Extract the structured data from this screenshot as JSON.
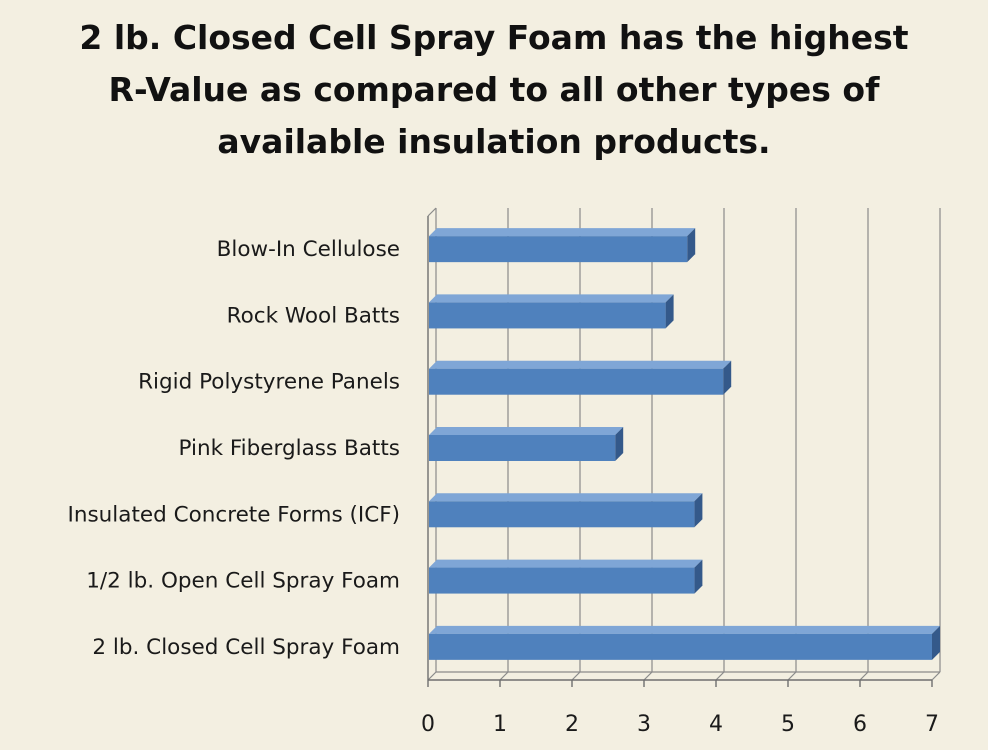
{
  "chart_data": {
    "type": "bar",
    "orientation": "horizontal",
    "title_lines": [
      "2 lb. Closed Cell Spray Foam has the highest",
      "R-Value as compared to all other types of",
      "available insulation products."
    ],
    "categories": [
      "Blow-In Cellulose",
      "Rock Wool Batts",
      "Rigid Polystyrene Panels",
      "Pink Fiberglass Batts",
      "Insulated Concrete Forms (ICF)",
      "1/2 lb. Open Cell Spray Foam",
      "2 lb. Closed Cell Spray Foam"
    ],
    "values": [
      3.6,
      3.3,
      4.1,
      2.6,
      3.7,
      3.7,
      7.0
    ],
    "xticks": [
      "0",
      "1",
      "2",
      "3",
      "4",
      "5",
      "6",
      "7"
    ],
    "xlim": [
      0,
      7
    ],
    "grid": true,
    "bar_color": "#4f81bd",
    "bar_top_color": "#7fa6d6",
    "bar_end_color": "#34598a",
    "gridline_color": "#8a8a8a"
  }
}
